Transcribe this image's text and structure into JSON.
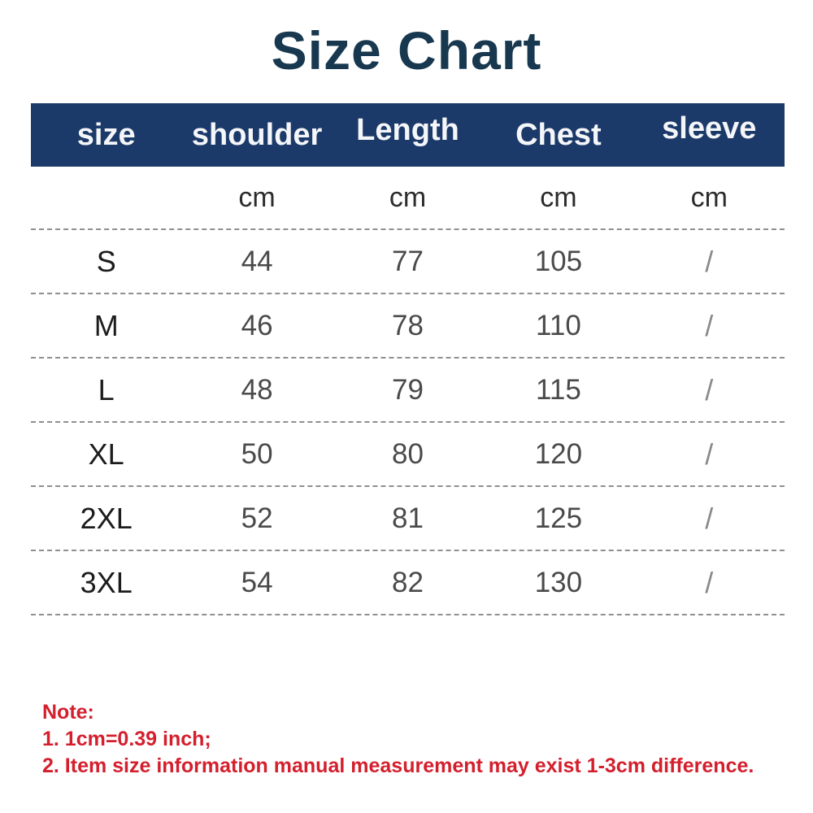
{
  "title": "Size Chart",
  "colors": {
    "title_text": "#17384f",
    "header_background": "#1c3a69",
    "header_text": "#ffffff",
    "value_text": "#4a4a4c",
    "size_label_text": "#1c1c1e",
    "divider": "#8f8f8f",
    "note_text": "#d41f2d"
  },
  "table": {
    "headers": [
      "size",
      "shoulder",
      "Length",
      "Chest",
      "sleeve"
    ],
    "units_row": [
      "",
      "cm",
      "cm",
      "cm",
      "cm"
    ],
    "rows": [
      {
        "size": "S",
        "shoulder": "44",
        "length": "77",
        "chest": "105",
        "sleeve": "/"
      },
      {
        "size": "M",
        "shoulder": "46",
        "length": "78",
        "chest": "110",
        "sleeve": "/"
      },
      {
        "size": "L",
        "shoulder": "48",
        "length": "79",
        "chest": "115",
        "sleeve": "/"
      },
      {
        "size": "XL",
        "shoulder": "50",
        "length": "80",
        "chest": "120",
        "sleeve": "/"
      },
      {
        "size": "2XL",
        "shoulder": "52",
        "length": "81",
        "chest": "125",
        "sleeve": "/"
      },
      {
        "size": "3XL",
        "shoulder": "54",
        "length": "82",
        "chest": "130",
        "sleeve": "/"
      }
    ]
  },
  "note": {
    "heading": "Note:",
    "lines": [
      "1. 1cm=0.39 inch;",
      "2. Item size information manual measurement may exist 1-3cm difference."
    ]
  },
  "chart_data": {
    "type": "table",
    "title": "Size Chart",
    "columns": [
      "size",
      "shoulder (cm)",
      "Length (cm)",
      "Chest (cm)",
      "sleeve (cm)"
    ],
    "rows": [
      [
        "S",
        44,
        77,
        105,
        "/"
      ],
      [
        "M",
        46,
        78,
        110,
        "/"
      ],
      [
        "L",
        48,
        79,
        115,
        "/"
      ],
      [
        "XL",
        50,
        80,
        120,
        "/"
      ],
      [
        "2XL",
        52,
        81,
        125,
        "/"
      ],
      [
        "3XL",
        54,
        82,
        130,
        "/"
      ]
    ],
    "notes": [
      "1. 1cm=0.39 inch;",
      "2. Item size information manual measurement may exist 1-3cm difference."
    ]
  }
}
